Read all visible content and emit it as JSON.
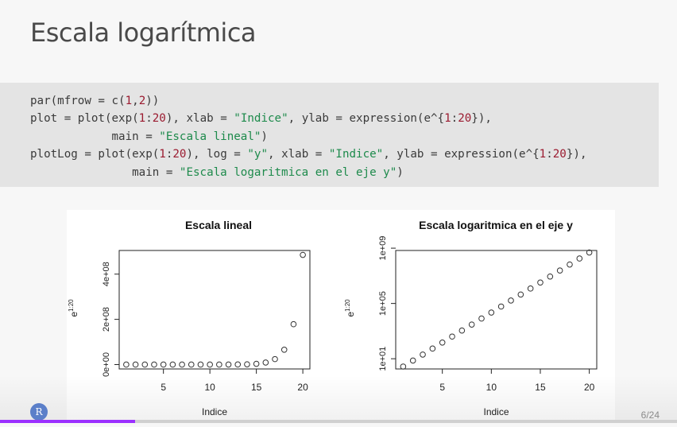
{
  "slide": {
    "title": "Escala logarítmica",
    "page_number": "6/24",
    "progress": 0.2,
    "avatar_letter": "R"
  },
  "code": {
    "lines": [
      [
        {
          "t": "par(mfrow = c("
        },
        {
          "t": "1",
          "k": "num"
        },
        {
          "t": ","
        },
        {
          "t": "2",
          "k": "num"
        },
        {
          "t": "))"
        }
      ],
      [
        {
          "t": "plot = plot(exp("
        },
        {
          "t": "1",
          "k": "num"
        },
        {
          "t": ":"
        },
        {
          "t": "20",
          "k": "num"
        },
        {
          "t": "), xlab = "
        },
        {
          "t": "\"Indice\"",
          "k": "str"
        },
        {
          "t": ", ylab = expression(e^{"
        },
        {
          "t": "1",
          "k": "num"
        },
        {
          "t": ":"
        },
        {
          "t": "20",
          "k": "num"
        },
        {
          "t": "}),"
        }
      ],
      [
        {
          "t": "            main = "
        },
        {
          "t": "\"Escala lineal\"",
          "k": "str"
        },
        {
          "t": ")"
        }
      ],
      [
        {
          "t": "plotLog = plot(exp("
        },
        {
          "t": "1",
          "k": "num"
        },
        {
          "t": ":"
        },
        {
          "t": "20",
          "k": "num"
        },
        {
          "t": "), log = "
        },
        {
          "t": "\"y\"",
          "k": "str"
        },
        {
          "t": ", xlab = "
        },
        {
          "t": "\"Indice\"",
          "k": "str"
        },
        {
          "t": ", ylab = expression(e^{"
        },
        {
          "t": "1",
          "k": "num"
        },
        {
          "t": ":"
        },
        {
          "t": "20",
          "k": "num"
        },
        {
          "t": "}),"
        }
      ],
      [
        {
          "t": "               main = "
        },
        {
          "t": "\"Escala logaritmica en el eje y\"",
          "k": "str"
        },
        {
          "t": ")"
        }
      ]
    ]
  },
  "colors": {
    "number": "#9b1b30",
    "string": "#1d8a4b",
    "progress": "#9b30ff"
  },
  "chart_data": [
    {
      "type": "scatter",
      "title": "Escala lineal",
      "xlabel": "Indice",
      "ylabel_base": "e",
      "ylabel_sup": "1:20",
      "x": [
        1,
        2,
        3,
        4,
        5,
        6,
        7,
        8,
        9,
        10,
        11,
        12,
        13,
        14,
        15,
        16,
        17,
        18,
        19,
        20
      ],
      "y_expr": "exp(x)",
      "xlim": [
        0.24,
        20.76
      ],
      "ylim": [
        -19408955,
        504632809
      ],
      "xticks": [
        5,
        10,
        15,
        20
      ],
      "xtick_labels": [
        "5",
        "10",
        "15",
        "20"
      ],
      "yticks": [
        0,
        200000000,
        400000000
      ],
      "ytick_labels": [
        "0e+00",
        "2e+08",
        "4e+08"
      ],
      "log_y": false
    },
    {
      "type": "scatter",
      "title": "Escala logaritmica en el eje y",
      "xlabel": "Indice",
      "ylabel_base": "e",
      "ylabel_sup": "1:20",
      "x": [
        1,
        2,
        3,
        4,
        5,
        6,
        7,
        8,
        9,
        10,
        11,
        12,
        13,
        14,
        15,
        16,
        17,
        18,
        19,
        20
      ],
      "y_expr": "exp(x)",
      "xlim": [
        0.24,
        20.76
      ],
      "ylim_log10": [
        0.2612,
        8.8329
      ],
      "xticks": [
        5,
        10,
        15,
        20
      ],
      "xtick_labels": [
        "5",
        "10",
        "15",
        "20"
      ],
      "yticks": [
        10,
        100000,
        1000000000
      ],
      "ytick_labels": [
        "1e+01",
        "1e+05",
        "1e+09"
      ],
      "log_y": true
    }
  ]
}
